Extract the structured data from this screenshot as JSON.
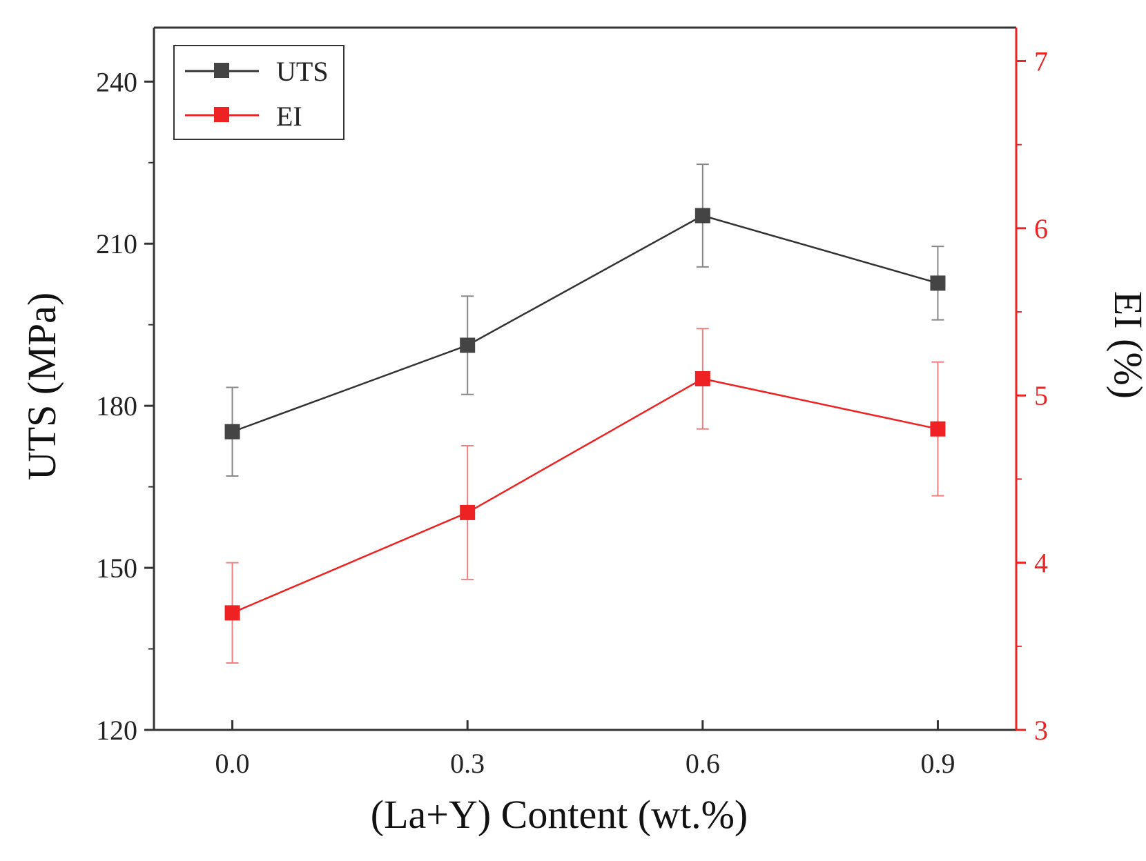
{
  "chart_data": {
    "type": "line",
    "xlabel": "(La+Y) Content (wt.%)",
    "ylabel": "UTS (MPa)",
    "y2label": "EI (%)",
    "x": [
      0.0,
      0.3,
      0.6,
      0.9
    ],
    "x_tick_labels": [
      "0.0",
      "0.3",
      "0.6",
      "0.9"
    ],
    "xlim": [
      -0.1,
      1.0
    ],
    "ylim": [
      120,
      250
    ],
    "y_ticks": [
      120,
      150,
      180,
      210,
      240
    ],
    "y_tick_labels": [
      "120",
      "150",
      "180",
      "210",
      "240"
    ],
    "y2lim": [
      3,
      7.2
    ],
    "y2_ticks": [
      3,
      4,
      5,
      6,
      7
    ],
    "y2_tick_labels": [
      "3",
      "4",
      "5",
      "6",
      "7"
    ],
    "legend_position": "top-left",
    "series": [
      {
        "name": "UTS",
        "axis": "left",
        "color": "#333333",
        "values": [
          175.2,
          191.2,
          215.2,
          202.7
        ],
        "errors": [
          8.2,
          9.1,
          9.5,
          6.8
        ]
      },
      {
        "name": "EI",
        "axis": "right",
        "color": "#ee2222",
        "values": [
          3.7,
          4.3,
          5.1,
          4.8
        ],
        "errors": [
          0.3,
          0.4,
          0.3,
          0.4
        ]
      }
    ]
  }
}
